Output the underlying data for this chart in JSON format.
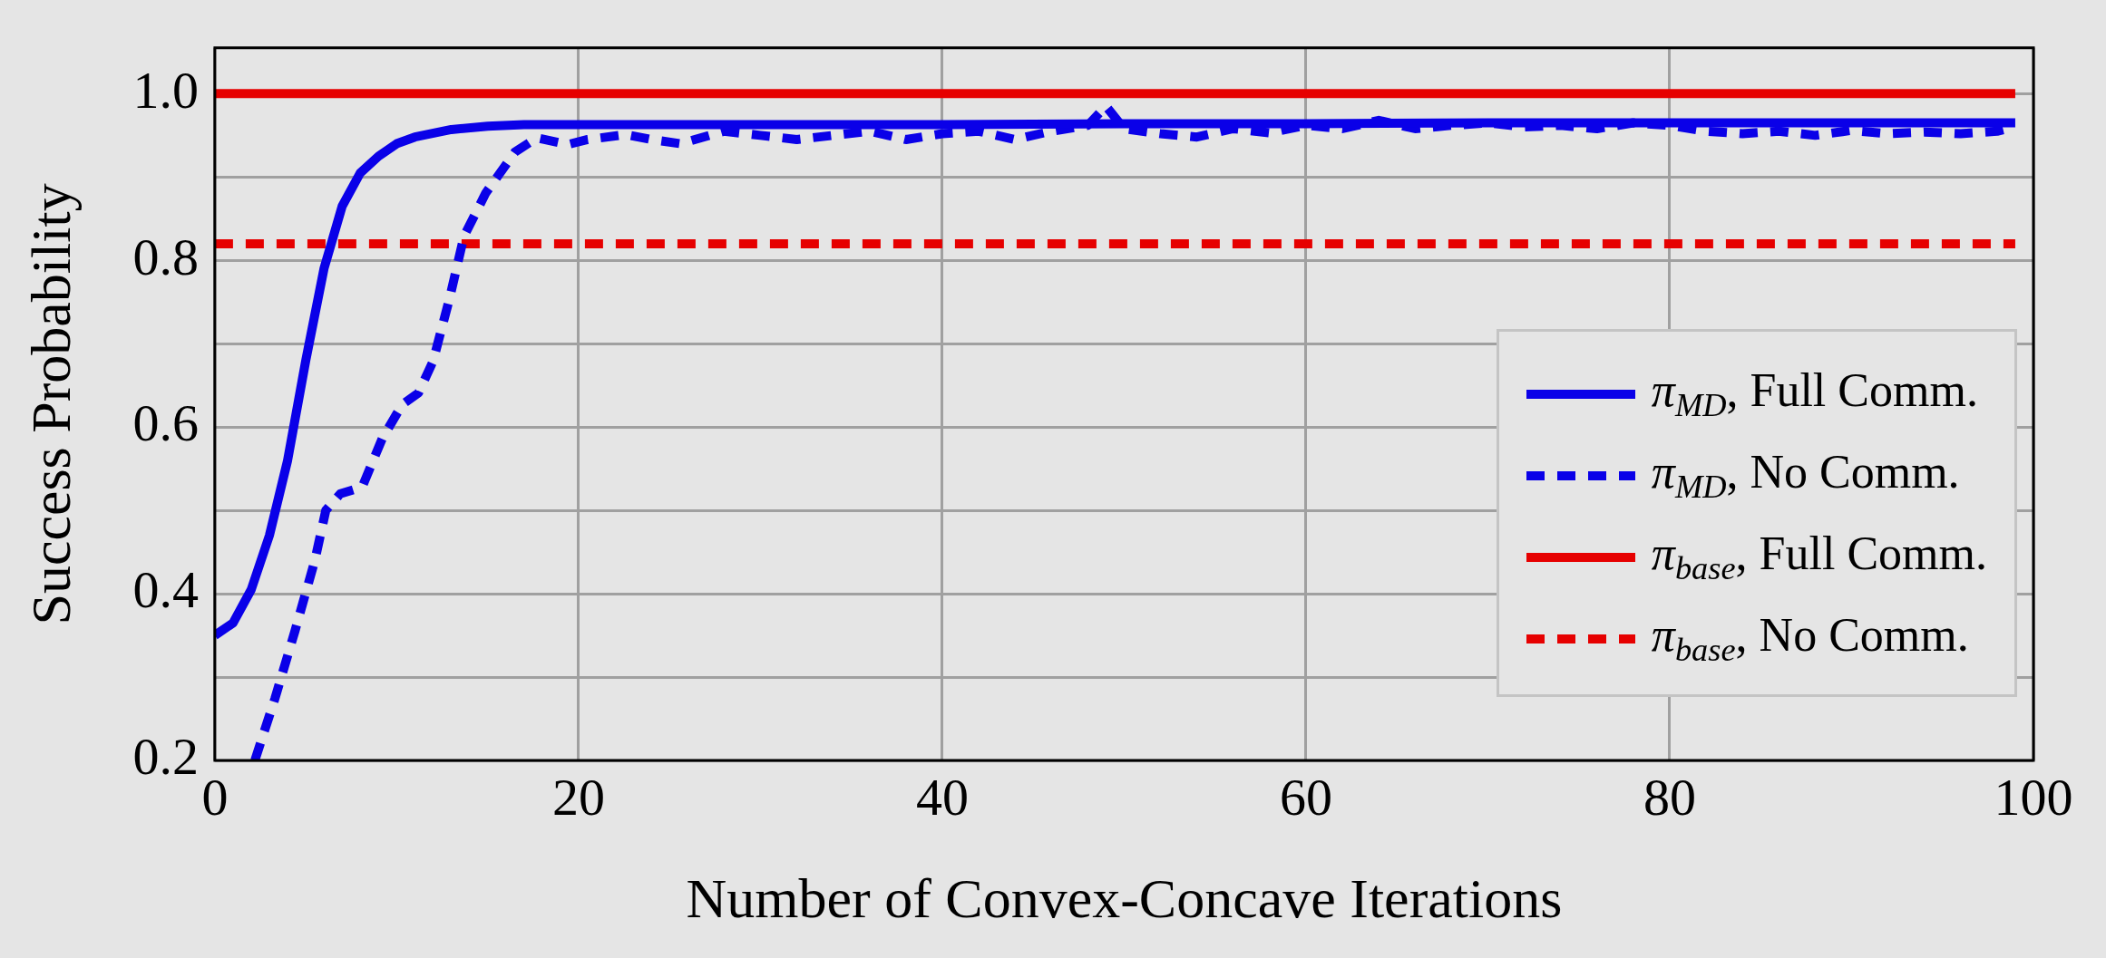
{
  "chart_data": {
    "type": "line",
    "xlabel": "Number of Convex-Concave Iterations",
    "ylabel": "Success Probability",
    "xlim": [
      0,
      100
    ],
    "ylim": [
      0.2,
      1.055
    ],
    "xticks": [
      0,
      20,
      40,
      60,
      80,
      100
    ],
    "yticks": [
      {
        "value": 0.2,
        "label": "0.2"
      },
      {
        "value": 0.3,
        "label": null
      },
      {
        "value": 0.4,
        "label": "0.4"
      },
      {
        "value": 0.5,
        "label": null
      },
      {
        "value": 0.6,
        "label": "0.6"
      },
      {
        "value": 0.7,
        "label": null
      },
      {
        "value": 0.8,
        "label": "0.8"
      },
      {
        "value": 0.9,
        "label": null
      },
      {
        "value": 1,
        "label": "1.0"
      }
    ],
    "grid": true,
    "legend": "bottom right",
    "series": [
      {
        "name": "π$_{MD}$, Full Comm.",
        "color": "#0a00e8",
        "line_style": "solid",
        "x": [
          0,
          1,
          2,
          3,
          4,
          5,
          6,
          7,
          8,
          9,
          10,
          11,
          13,
          15,
          17,
          20,
          30,
          40,
          50,
          60,
          70,
          80,
          90,
          99
        ],
        "values": [
          0.35,
          0.365,
          0.405,
          0.47,
          0.56,
          0.68,
          0.79,
          0.865,
          0.905,
          0.925,
          0.94,
          0.948,
          0.957,
          0.961,
          0.963,
          0.963,
          0.963,
          0.963,
          0.964,
          0.964,
          0.965,
          0.965,
          0.965,
          0.965
        ]
      },
      {
        "name": "π$_{MD}$, No Comm.",
        "color": "#0a00e8",
        "line_style": "dashed",
        "x": [
          2.2,
          3.3,
          4.4,
          5.5,
          6.1,
          6.9,
          8.1,
          9.2,
          10.3,
          11.2,
          12,
          12.9,
          13.7,
          14.9,
          16.5,
          17.7,
          19.4,
          20.5,
          22.6,
          24,
          25.6,
          28,
          30,
          32,
          34,
          36,
          38,
          40,
          42,
          44,
          46,
          48,
          49,
          50,
          52,
          54,
          56,
          58,
          60,
          62,
          64,
          66,
          68,
          70,
          72,
          74,
          76,
          78,
          80,
          82,
          84,
          86,
          88,
          90,
          92,
          94,
          96,
          98,
          99
        ],
        "values": [
          0.2,
          0.274,
          0.355,
          0.44,
          0.5,
          0.52,
          0.528,
          0.586,
          0.627,
          0.641,
          0.679,
          0.754,
          0.829,
          0.881,
          0.93,
          0.947,
          0.939,
          0.945,
          0.951,
          0.945,
          0.94,
          0.955,
          0.95,
          0.945,
          0.95,
          0.955,
          0.945,
          0.952,
          0.955,
          0.945,
          0.955,
          0.962,
          0.985,
          0.958,
          0.952,
          0.948,
          0.958,
          0.953,
          0.962,
          0.958,
          0.968,
          0.958,
          0.962,
          0.965,
          0.96,
          0.962,
          0.958,
          0.965,
          0.962,
          0.955,
          0.952,
          0.955,
          0.95,
          0.956,
          0.952,
          0.954,
          0.952,
          0.955,
          0.96
        ]
      },
      {
        "name": "π$_{base}$, Full Comm.",
        "color": "#e60000",
        "line_style": "solid",
        "x": [
          0,
          99
        ],
        "values": [
          1.0,
          1.0
        ]
      },
      {
        "name": "π$_{base}$, No Comm.",
        "color": "#e60000",
        "line_style": "dashed",
        "x": [
          0,
          99
        ],
        "values": [
          0.82,
          0.82
        ]
      }
    ]
  }
}
